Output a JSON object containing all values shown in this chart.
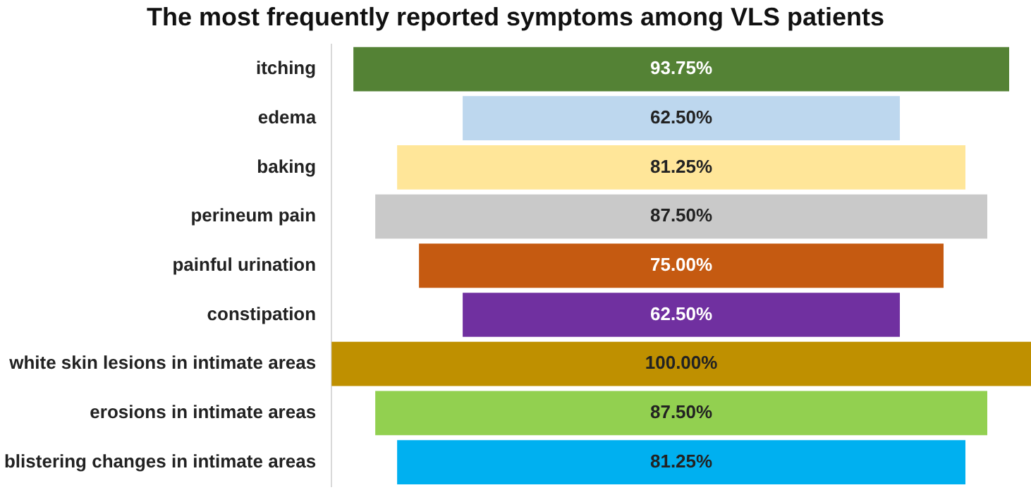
{
  "chart_data": {
    "type": "other",
    "title": "The most frequently reported symptoms among VLS patients",
    "categories": [
      "itching",
      "edema",
      "baking",
      "perineum pain",
      "painful urination",
      "constipation",
      "white skin lesions in intimate areas",
      "erosions in intimate areas",
      "blistering changes in intimate areas"
    ],
    "values": [
      93.75,
      62.5,
      81.25,
      87.5,
      75,
      62.5,
      100,
      87.5,
      81.25
    ],
    "colors": [
      "#548235",
      "#bdd7ee",
      "#ffe699",
      "#c9c9c9",
      "#c55a11",
      "#7030a0",
      "#bf9000",
      "#92d050",
      "#00b0f0"
    ],
    "value_labels": [
      "93.75%",
      "62.50%",
      "81.25%",
      "87.50%",
      "75.00%",
      "62.50%",
      "100.00%",
      "87.50%",
      "81.25%"
    ],
    "legend": false
  }
}
